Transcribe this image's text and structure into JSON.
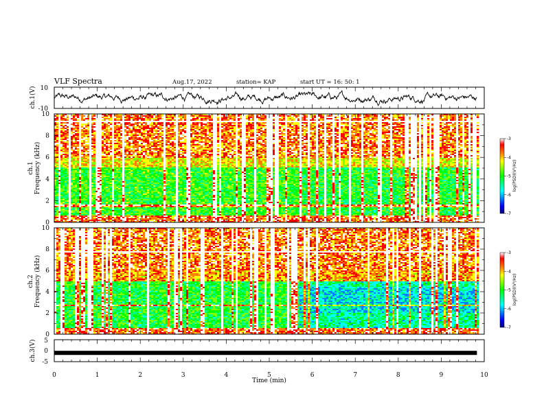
{
  "header": {
    "title": "VLF Spectra",
    "date": "Aug.17, 2022",
    "station": "station= KAP",
    "start": "start  UT  =   16: 50: 1"
  },
  "colors": {
    "colormap": [
      "#000080",
      "#0000ff",
      "#0080ff",
      "#00ffff",
      "#00ff80",
      "#00ff00",
      "#80ff00",
      "#ffff00",
      "#ff8000",
      "#ff0000",
      "#ffffff"
    ]
  },
  "chart_data": [
    {
      "type": "line",
      "panel": "ch1-waveform",
      "ylabel": "ch.1(V)",
      "ylim": [
        -10,
        10
      ],
      "yticks": [
        "10",
        "-10"
      ],
      "x_range_min": [
        0,
        10
      ],
      "data_end_min": 9.83,
      "approx_mean_v": 0,
      "approx_amplitude_v": 5
    },
    {
      "type": "heatmap",
      "panel": "ch1-spectrogram",
      "ylabel": "ch.1\nFrequency (kHz)",
      "ylim": [
        0,
        10
      ],
      "yticks": [
        "0",
        "2",
        "4",
        "6",
        "8",
        "10"
      ],
      "x_range_min": [
        0,
        10
      ],
      "data_end_min": 9.83,
      "regime_change_min": 5.7,
      "colorbar": {
        "label": "log(PSD)(V²/Hz)",
        "range": [
          -7,
          -3
        ],
        "ticks": [
          "-3",
          "-4",
          "-5",
          "-6",
          "-7"
        ]
      }
    },
    {
      "type": "heatmap",
      "panel": "ch2-spectrogram",
      "ylabel": "ch.2\nFrequency (kHz)",
      "ylim": [
        0,
        10
      ],
      "yticks": [
        "0",
        "2",
        "4",
        "6",
        "8",
        "10"
      ],
      "x_range_min": [
        0,
        10
      ],
      "data_end_min": 9.83,
      "regime_change_min": 5.7,
      "colorbar": {
        "label": "log(PSD)(V²/Hz)",
        "range": [
          -7,
          -3
        ],
        "ticks": [
          "-3",
          "-4",
          "-5",
          "-6",
          "-7"
        ]
      }
    },
    {
      "type": "line",
      "panel": "ch3-waveform",
      "ylabel": "ch.3(V)",
      "ylim": [
        -5,
        5
      ],
      "yticks": [
        "5",
        "0",
        "-5"
      ],
      "x_range_min": [
        0,
        10
      ],
      "data_end_min": 9.83,
      "approx_level_v": -1
    }
  ],
  "xaxis": {
    "label": "Time  (min)",
    "ticks": [
      "0",
      "1",
      "2",
      "3",
      "4",
      "5",
      "6",
      "7",
      "8",
      "9",
      "10"
    ]
  }
}
